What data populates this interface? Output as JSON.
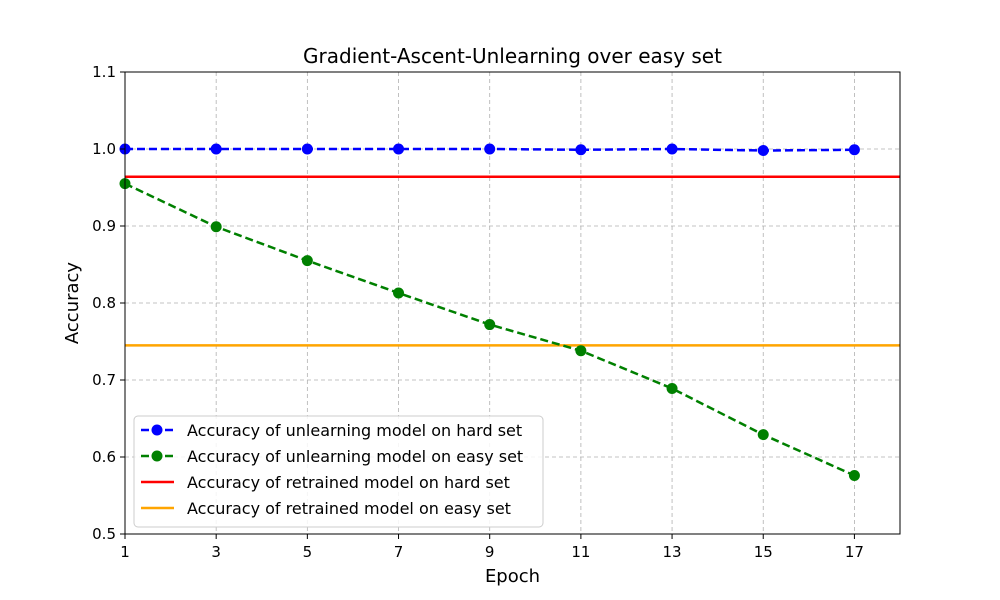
{
  "chart_data": {
    "type": "line",
    "title": "Gradient-Ascent-Unlearning over easy set",
    "xlabel": "Epoch",
    "ylabel": "Accuracy",
    "xlim": [
      1,
      18
    ],
    "ylim": [
      0.5,
      1.1
    ],
    "xticks": [
      1,
      3,
      5,
      7,
      9,
      11,
      13,
      15,
      17
    ],
    "yticks": [
      0.5,
      0.6,
      0.7,
      0.8,
      0.9,
      1.0,
      1.1
    ],
    "ytick_labels": [
      "0.5",
      "0.6",
      "0.7",
      "0.8",
      "0.9",
      "1.0",
      "1.1"
    ],
    "grid": true,
    "legend_position": "lower-left",
    "x": [
      1,
      3,
      5,
      7,
      9,
      11,
      13,
      15,
      17
    ],
    "series": [
      {
        "name": "Accuracy of unlearning model on hard set",
        "style": "dashed-markers",
        "color": "#0000ff",
        "values": [
          1.0,
          1.0,
          1.0,
          1.0,
          1.0,
          0.999,
          1.0,
          0.998,
          0.999
        ]
      },
      {
        "name": "Accuracy of unlearning model on easy set",
        "style": "dashed-markers",
        "color": "#008000",
        "values": [
          0.955,
          0.899,
          0.855,
          0.813,
          0.772,
          0.738,
          0.689,
          0.629,
          0.576
        ]
      },
      {
        "name": "Accuracy of retrained model on hard set",
        "style": "solid-hline",
        "color": "#ff0000",
        "value": 0.964
      },
      {
        "name": "Accuracy of retrained model on easy set",
        "style": "solid-hline",
        "color": "#ffa500",
        "value": 0.745
      }
    ]
  }
}
